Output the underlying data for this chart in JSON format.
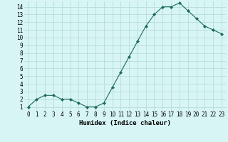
{
  "xlabel": "Humidex (Indice chaleur)",
  "x": [
    0,
    1,
    2,
    3,
    4,
    5,
    6,
    7,
    8,
    9,
    10,
    11,
    12,
    13,
    14,
    15,
    16,
    17,
    18,
    19,
    20,
    21,
    22,
    23
  ],
  "y": [
    1,
    2,
    2.5,
    2.5,
    2,
    2,
    1.5,
    1,
    1,
    1.5,
    3.5,
    5.5,
    7.5,
    9.5,
    11.5,
    13,
    14,
    14,
    14.5,
    13.5,
    12.5,
    11.5,
    11,
    10.5
  ],
  "xlim": [
    -0.5,
    23.5
  ],
  "ylim": [
    0.5,
    14.7
  ],
  "yticks": [
    1,
    2,
    3,
    4,
    5,
    6,
    7,
    8,
    9,
    10,
    11,
    12,
    13,
    14
  ],
  "xticks": [
    0,
    1,
    2,
    3,
    4,
    5,
    6,
    7,
    8,
    9,
    10,
    11,
    12,
    13,
    14,
    15,
    16,
    17,
    18,
    19,
    20,
    21,
    22,
    23
  ],
  "line_color": "#1a6b5a",
  "marker": "D",
  "marker_size": 2.0,
  "bg_color": "#d8f5f5",
  "grid_color": "#b0d8d0",
  "xlabel_fontsize": 6.5,
  "tick_fontsize": 5.5
}
